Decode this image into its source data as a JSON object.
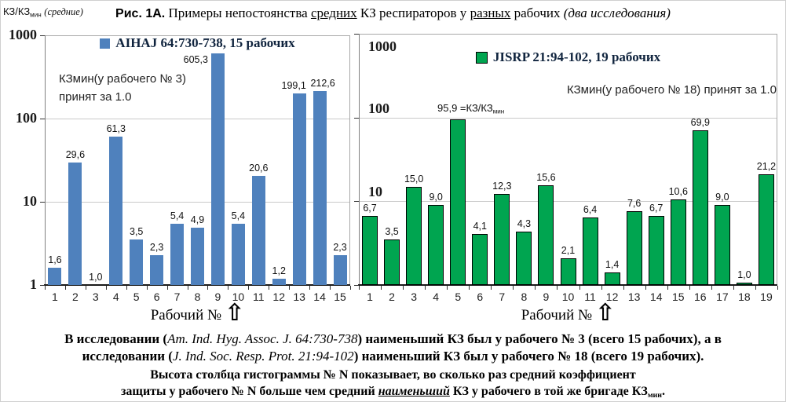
{
  "ynote": {
    "parts": [
      {
        "t": "КЗ/КЗ"
      },
      {
        "t": "мин",
        "sub": true
      },
      {
        "t": "  "
      },
      {
        "t": "(средние)",
        "i": true,
        "serif": true
      }
    ]
  },
  "title": {
    "parts": [
      {
        "t": "Рис. 1А.",
        "b": true,
        "sans": true
      },
      {
        "t": " Примеры непостоянства "
      },
      {
        "t": "средних",
        "u": true
      },
      {
        "t": " КЗ респираторов у "
      },
      {
        "t": "разных",
        "u": true
      },
      {
        "t": " рабочих "
      },
      {
        "t": "(два исследования)",
        "i": true
      }
    ]
  },
  "icons": {
    "up_arrow": "⇧"
  },
  "chart_data": [
    {
      "type": "bar",
      "legend": "AIHAJ 64:730-738, 15 рабочих",
      "bar_color": "#4f81bd",
      "bar_border": "",
      "yscale": "log",
      "ylim": [
        1,
        1000
      ],
      "yticks": [
        "1",
        "10",
        "100",
        "1000"
      ],
      "grid": true,
      "categories": [
        "1",
        "2",
        "3",
        "4",
        "5",
        "6",
        "7",
        "8",
        "9",
        "10",
        "11",
        "12",
        "13",
        "14",
        "15"
      ],
      "values": [
        1.6,
        29.6,
        1.0,
        61.3,
        3.5,
        2.3,
        5.4,
        4.9,
        605.3,
        5.4,
        20.6,
        1.2,
        199.1,
        212.6,
        2.3
      ],
      "labels": [
        "1,6",
        "29,6",
        "1,0",
        "61,3",
        "3,5",
        "2,3",
        "5,4",
        "4,9",
        "605,3",
        "5,4",
        "20,6",
        "1,2",
        "199,1",
        "212,6",
        "2,3"
      ],
      "annotation_line1": "КЗмин(у рабочего № 3)",
      "annotation_line2": "принят за 1.0",
      "xlabel": "Рабочий №"
    },
    {
      "type": "bar",
      "legend": "JISRP 21:94-102, 19 рабочих",
      "bar_color": "#00a550",
      "bar_border": "#000000",
      "yscale": "log",
      "ylim": [
        1,
        1000
      ],
      "yticks": [
        "10",
        "100",
        "1000"
      ],
      "grid": true,
      "categories": [
        "1",
        "2",
        "3",
        "4",
        "5",
        "6",
        "7",
        "8",
        "9",
        "10",
        "11",
        "12",
        "13",
        "14",
        "15",
        "16",
        "17",
        "18",
        "19"
      ],
      "values": [
        6.7,
        3.5,
        15.0,
        9.0,
        95.9,
        4.1,
        12.3,
        4.3,
        15.6,
        2.1,
        6.4,
        1.4,
        7.6,
        6.7,
        10.6,
        69.9,
        9.0,
        1.0,
        21.2
      ],
      "labels": [
        "6,7",
        "3,5",
        "15,0",
        "9,0",
        "",
        "4,1",
        "12,3",
        "4,3",
        "15,6",
        "2,1",
        "6,4",
        "1,4",
        "7,6",
        "6,7",
        "10,6",
        "69,9",
        "9,0",
        "1,0",
        "21,2"
      ],
      "peak_annotation": {
        "parts": [
          {
            "t": "95,9 ="
          },
          {
            "t": "КЗ/КЗ"
          },
          {
            "t": "мин",
            "sub": true
          }
        ]
      },
      "annotation": "КЗмин(у рабочего № 18) принят за 1.0",
      "xlabel": "Рабочий №"
    }
  ],
  "footer": {
    "p1l1": {
      "parts": [
        {
          "t": "В исследовании (",
          "b": true
        },
        {
          "t": "Am. Ind. Hyg. Assoc. J. 64:730-738",
          "i": true
        },
        {
          "t": ") наименьший КЗ был у рабочего № 3 (всего 15 рабочих), а в",
          "b": true
        }
      ]
    },
    "p1l2": {
      "parts": [
        {
          "t": "исследовании (",
          "b": true
        },
        {
          "t": "J. Ind. Soc. Resp. Prot. 21:94-102",
          "i": true
        },
        {
          "t": ") наименьший КЗ был у рабочего № 18 (всего 19 рабочих).",
          "b": true
        }
      ]
    },
    "p2l1": {
      "parts": [
        {
          "t": "Высота столбца гистограммы № N показывает, во сколько раз средний коэффициент",
          "b": true
        }
      ]
    },
    "p2l2": {
      "parts": [
        {
          "t": "защиты у рабочего № N больше чем средний ",
          "b": true
        },
        {
          "t": "наименьший",
          "b": true,
          "i": true,
          "u": true
        },
        {
          "t": " КЗ у рабочего в той же бригаде КЗ",
          "b": true
        },
        {
          "t": "мин",
          "b": true,
          "sub": true
        },
        {
          "t": ".",
          "b": true
        }
      ]
    }
  }
}
